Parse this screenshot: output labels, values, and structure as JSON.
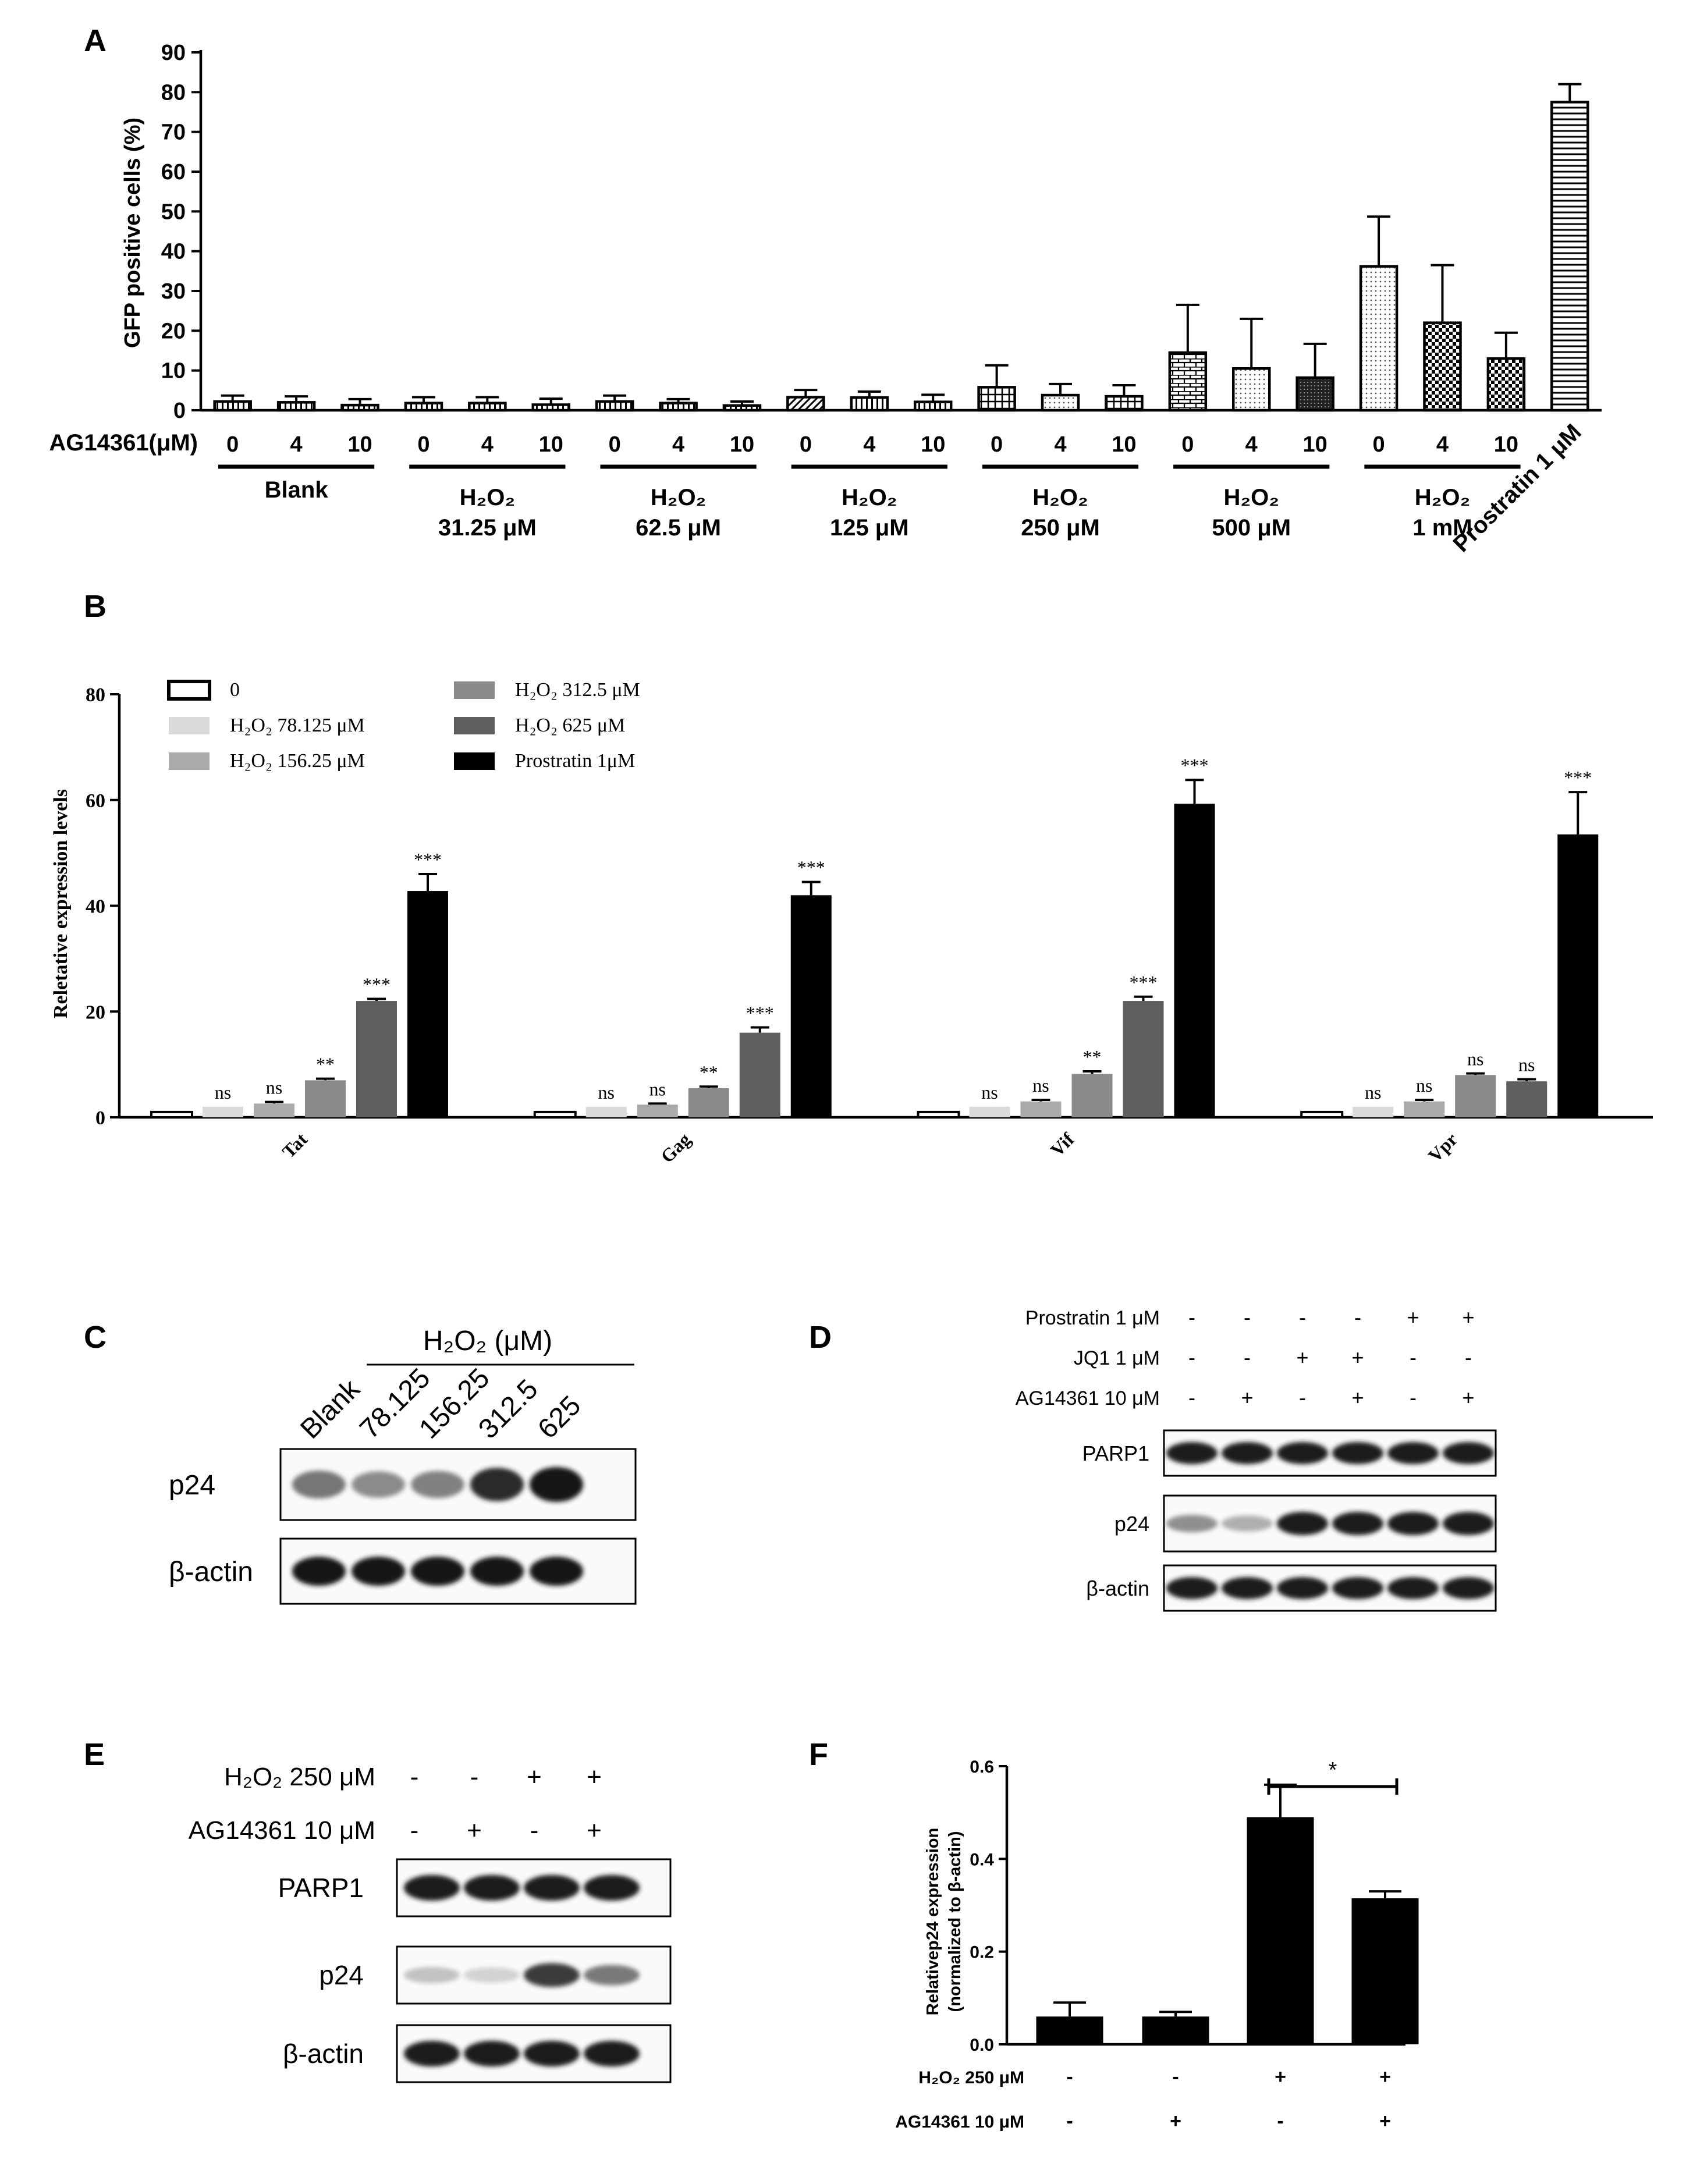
{
  "panel_letters": {
    "a": "A",
    "b": "B",
    "c": "C",
    "d": "D",
    "e": "E",
    "f": "F"
  },
  "chart_data": [
    {
      "panel": "A",
      "type": "bar",
      "ylabel": "GFP positive cells (%)",
      "ylim": [
        0,
        90
      ],
      "yticks": [
        0,
        10,
        20,
        30,
        40,
        50,
        60,
        70,
        80,
        90
      ],
      "x_row_label": "AG14361(μM)",
      "categories": [
        "0",
        "4",
        "10",
        "0",
        "4",
        "10",
        "0",
        "4",
        "10",
        "0",
        "4",
        "10",
        "0",
        "4",
        "10",
        "0",
        "4",
        "10",
        "0",
        "4",
        "10",
        "Prostratin 1 μM"
      ],
      "values": [
        2.2,
        2.0,
        1.3,
        1.8,
        1.8,
        1.4,
        2.2,
        1.8,
        1.2,
        3.3,
        3.2,
        2.1,
        5.8,
        3.8,
        3.5,
        14.5,
        10.5,
        8.2,
        36.2,
        22.0,
        13.0,
        77.5
      ],
      "errors": [
        1.5,
        1.5,
        1.5,
        1.5,
        1.5,
        1.5,
        1.5,
        1.0,
        1.0,
        1.8,
        1.5,
        1.8,
        5.5,
        2.8,
        2.8,
        12.0,
        12.5,
        8.5,
        12.5,
        14.5,
        6.5,
        4.5
      ],
      "patterns": [
        "vline",
        "vline",
        "vline",
        "vline",
        "vline",
        "vline",
        "vline",
        "vline",
        "vline",
        "diag",
        "vline",
        "vline",
        "grid",
        "dot",
        "grid",
        "brick",
        "dot",
        "dark",
        "dot",
        "check",
        "check",
        "hline"
      ],
      "groups": [
        {
          "line1": "Blank",
          "line2": ""
        },
        {
          "line1": "H₂O₂",
          "line2": "31.25 μM"
        },
        {
          "line1": "H₂O₂",
          "line2": "62.5 μM"
        },
        {
          "line1": "H₂O₂",
          "line2": "125 μM"
        },
        {
          "line1": "H₂O₂",
          "line2": "250 μM"
        },
        {
          "line1": "H₂O₂",
          "line2": "500 μM"
        },
        {
          "line1": "H₂O₂",
          "line2": "1 mM"
        }
      ]
    },
    {
      "panel": "B",
      "type": "bar",
      "ylabel": "Reletative expression levels",
      "ylim": [
        0,
        80
      ],
      "yticks": [
        0,
        20,
        40,
        60,
        80
      ],
      "categories": [
        "Tat",
        "Gag",
        "Vif",
        "Vpr"
      ],
      "series": [
        {
          "name": "0",
          "color": "#ffffff",
          "values": [
            1.0,
            1.0,
            1.0,
            1.0
          ],
          "errors": [
            0,
            0,
            0,
            0
          ],
          "sig": [
            "",
            "",
            "",
            ""
          ]
        },
        {
          "name": "H₂O₂ 78.125 μM",
          "color": "#dadada",
          "values": [
            2.0,
            2.0,
            2.0,
            2.0
          ],
          "errors": [
            0,
            0,
            0,
            0
          ],
          "sig": [
            "ns",
            "ns",
            "ns",
            "ns"
          ]
        },
        {
          "name": "H₂O₂ 156.25 μM",
          "color": "#aaaaaa",
          "values": [
            2.6,
            2.4,
            3.0,
            3.0
          ],
          "errors": [
            0.3,
            0.2,
            0.3,
            0.3
          ],
          "sig": [
            "ns",
            "ns",
            "ns",
            "ns"
          ]
        },
        {
          "name": "H₂O₂ 312.5 μM",
          "color": "#8a8a8a",
          "values": [
            7.0,
            5.5,
            8.2,
            8.0
          ],
          "errors": [
            0.3,
            0.3,
            0.5,
            0.3
          ],
          "sig": [
            "**",
            "**",
            "**",
            "ns"
          ]
        },
        {
          "name": "H₂O₂ 625 μM",
          "color": "#5e5e5e",
          "values": [
            22.0,
            16.0,
            22.0,
            6.8
          ],
          "errors": [
            0.4,
            1.0,
            0.8,
            0.4
          ],
          "sig": [
            "***",
            "***",
            "***",
            "ns"
          ]
        },
        {
          "name": "Prostratin 1μM",
          "color": "#000000",
          "values": [
            42.8,
            42.0,
            59.3,
            53.5
          ],
          "errors": [
            3.2,
            2.5,
            4.5,
            8.0
          ],
          "sig": [
            "***",
            "***",
            "***",
            "***"
          ]
        }
      ]
    },
    {
      "panel": "F",
      "type": "bar",
      "ylabel_line1": "Relativep24 expression",
      "ylabel_line2": "(normalized to β-actin)",
      "ylim": [
        0,
        0.6
      ],
      "yticks": [
        "0.0",
        "0.2",
        "0.4",
        "0.6"
      ],
      "values": [
        0.06,
        0.06,
        0.49,
        0.315
      ],
      "errors": [
        0.03,
        0.01,
        0.07,
        0.015
      ],
      "rows": [
        {
          "label": "H₂O₂ 250 μM",
          "signs": [
            "-",
            "-",
            "+",
            "+"
          ]
        },
        {
          "label": "AG14361 10 μM",
          "signs": [
            "-",
            "+",
            "-",
            "+"
          ]
        }
      ],
      "significance": "*"
    }
  ],
  "blot_c": {
    "header": "H₂O₂ (μM)",
    "lanes": [
      "Blank",
      "78.125",
      "156.25",
      "312.5",
      "625"
    ],
    "rows": [
      {
        "label": "p24",
        "intensity": [
          0.55,
          0.45,
          0.5,
          0.9,
          1.0
        ]
      },
      {
        "label": "β-actin",
        "intensity": [
          1.0,
          1.0,
          1.0,
          1.0,
          1.0
        ]
      }
    ]
  },
  "blot_d": {
    "treatments": [
      {
        "label": "Prostratin 1 μM",
        "signs": [
          "-",
          "-",
          "-",
          "-",
          "+",
          "+"
        ]
      },
      {
        "label": "JQ1 1 μM",
        "signs": [
          "-",
          "-",
          "+",
          "+",
          "-",
          "-"
        ]
      },
      {
        "label": "AG14361 10 μM",
        "signs": [
          "-",
          "+",
          "-",
          "+",
          "-",
          "+"
        ]
      }
    ],
    "rows": [
      {
        "label": "PARP1",
        "intensity": [
          1,
          1,
          1,
          1,
          1,
          1
        ]
      },
      {
        "label": "p24",
        "intensity": [
          0.45,
          0.3,
          1,
          1,
          1,
          1
        ]
      },
      {
        "label": "β-actin",
        "intensity": [
          1,
          1,
          1,
          1,
          1,
          1
        ]
      }
    ]
  },
  "blot_e": {
    "treatments": [
      {
        "label": "H₂O₂ 250 μM",
        "signs": [
          "-",
          "-",
          "+",
          "+"
        ]
      },
      {
        "label": "AG14361 10 μM",
        "signs": [
          "-",
          "+",
          "-",
          "+"
        ]
      }
    ],
    "rows": [
      {
        "label": "PARP1",
        "intensity": [
          1,
          1,
          1,
          1
        ]
      },
      {
        "label": "p24",
        "intensity": [
          0.2,
          0.12,
          0.85,
          0.55
        ]
      },
      {
        "label": "β-actin",
        "intensity": [
          1,
          1,
          1,
          1
        ]
      }
    ]
  }
}
